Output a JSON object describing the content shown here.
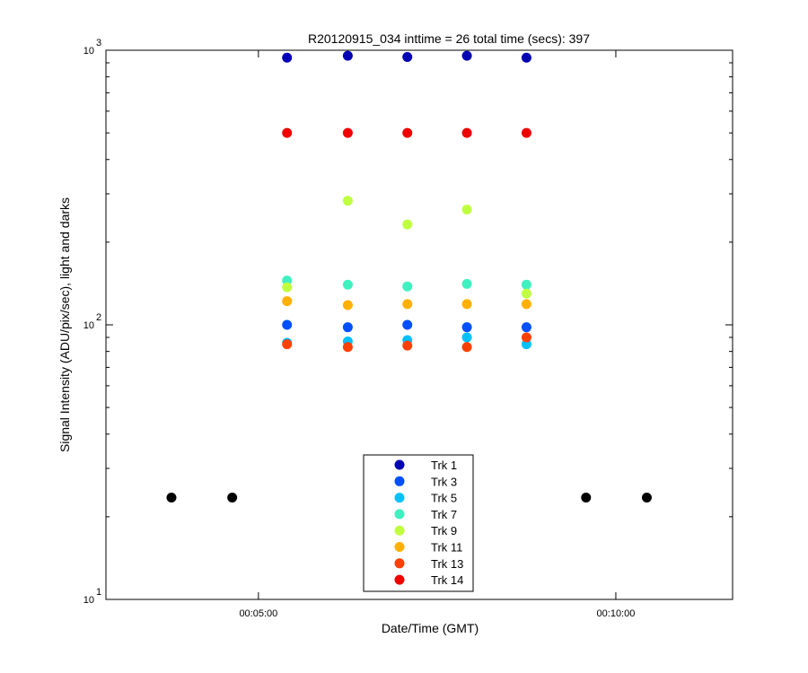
{
  "chart_data": {
    "type": "scatter",
    "title": "R20120915_034 inttime = 26 total time (secs): 397",
    "xlabel": "Date/Time (GMT)",
    "ylabel": "Signal Intensity (ADU/pix/sec), light and darks",
    "yscale": "log",
    "ylim": [
      10,
      1000
    ],
    "y_ticks": [
      {
        "value": 10,
        "base": "10",
        "exp": "1"
      },
      {
        "value": 100,
        "base": "10",
        "exp": "2"
      },
      {
        "value": 1000,
        "base": "10",
        "exp": "3"
      }
    ],
    "xlim": [
      "00:02:52",
      "00:11:38"
    ],
    "x_ticks": [
      "00:05:00",
      "00:10:00"
    ],
    "grid": false,
    "legend_position": "bottom-center",
    "series": [
      {
        "name": "Trk 1",
        "color": "#0000b4",
        "x": [
          "00:05:24",
          "00:06:15",
          "00:07:05",
          "00:07:55",
          "00:08:45"
        ],
        "y": [
          940,
          955,
          945,
          955,
          940
        ]
      },
      {
        "name": "Trk 3",
        "color": "#0050ff",
        "x": [
          "00:05:24",
          "00:06:15",
          "00:07:05",
          "00:07:55",
          "00:08:45"
        ],
        "y": [
          100,
          98,
          100,
          98,
          98
        ]
      },
      {
        "name": "Trk 5",
        "color": "#00c0ff",
        "x": [
          "00:05:24",
          "00:06:15",
          "00:07:05",
          "00:07:55",
          "00:08:45"
        ],
        "y": [
          86,
          87,
          88,
          90,
          85
        ]
      },
      {
        "name": "Trk 7",
        "color": "#40f0c0",
        "x": [
          "00:05:24",
          "00:06:15",
          "00:07:05",
          "00:07:55",
          "00:08:45"
        ],
        "y": [
          145,
          140,
          138,
          141,
          140
        ]
      },
      {
        "name": "Trk 9",
        "color": "#c0ff40",
        "x": [
          "00:05:24",
          "00:06:15",
          "00:07:05",
          "00:07:55",
          "00:08:45"
        ],
        "y": [
          137,
          283,
          232,
          263,
          130
        ]
      },
      {
        "name": "Trk 11",
        "color": "#ffb000",
        "x": [
          "00:05:24",
          "00:06:15",
          "00:07:05",
          "00:07:55",
          "00:08:45"
        ],
        "y": [
          122,
          118,
          119,
          119,
          119
        ]
      },
      {
        "name": "Trk 13",
        "color": "#ff4000",
        "x": [
          "00:05:24",
          "00:06:15",
          "00:07:05",
          "00:07:55",
          "00:08:45"
        ],
        "y": [
          85,
          83,
          84,
          83,
          90
        ]
      },
      {
        "name": "Trk 14",
        "color": "#f00000",
        "x": [
          "00:05:24",
          "00:06:15",
          "00:07:05",
          "00:07:55",
          "00:08:45"
        ],
        "y": [
          500,
          500,
          500,
          500,
          500
        ]
      }
    ],
    "darks": {
      "color": "#000000",
      "x": [
        "00:03:47",
        "00:04:38",
        "00:09:35",
        "00:10:26"
      ],
      "y": [
        23.5,
        23.5,
        23.5,
        23.5
      ]
    }
  }
}
